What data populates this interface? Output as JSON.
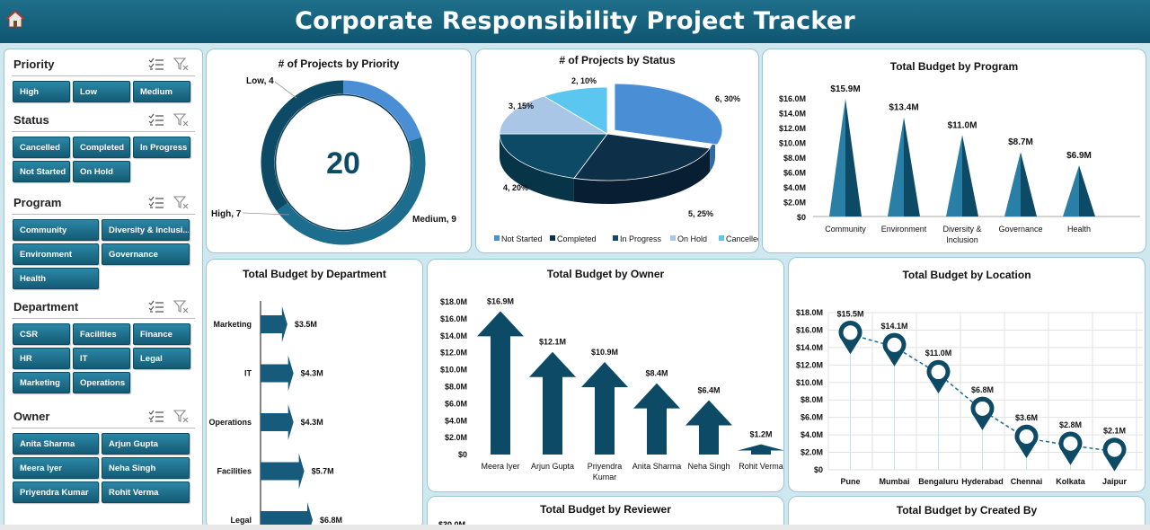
{
  "header": {
    "title": "Corporate Responsibility Project Tracker"
  },
  "slicers": [
    {
      "title": "Priority",
      "items": [
        "High",
        "Low",
        "Medium"
      ]
    },
    {
      "title": "Status",
      "items": [
        "Cancelled",
        "Completed",
        "In Progress",
        "Not Started",
        "On Hold"
      ]
    },
    {
      "title": "Program",
      "items": [
        "Community",
        "Diversity & Inclusi...",
        "Environment",
        "Governance",
        "Health"
      ]
    },
    {
      "title": "Department",
      "items": [
        "CSR",
        "Facilities",
        "Finance",
        "HR",
        "IT",
        "Legal",
        "Marketing",
        "Operations"
      ]
    },
    {
      "title": "Owner",
      "items": [
        "Anita Sharma",
        "Arjun Gupta",
        "Meera Iyer",
        "Neha Singh",
        "Priyendra Kumar",
        "Rohit Verma"
      ]
    }
  ],
  "colors": {
    "dark": "#0d4a66",
    "mid": "#1d6d8f",
    "accent": "#4a8fd6",
    "light": "#a9c6e6",
    "sky": "#5bc6f0"
  },
  "charts": {
    "priority": {
      "title": "# of Projects by Priority",
      "total": "20",
      "labels": [
        "Low, 4",
        "Medium, 9",
        "High, 7"
      ]
    },
    "status": {
      "title": "# of Projects by Status",
      "labels": [
        "6, 30%",
        "5, 25%",
        "4, 20%",
        "3, 15%",
        "2, 10%"
      ],
      "legend": [
        "Not Started",
        "Completed",
        "In Progress",
        "On Hold",
        "Cancelled"
      ]
    },
    "program": {
      "title": "Total Budget by Program",
      "ticks": [
        "$16.0M",
        "$14.0M",
        "$12.0M",
        "$10.0M",
        "$8.0M",
        "$6.0M",
        "$4.0M",
        "$2.0M",
        "$0"
      ],
      "categories": [
        "Community",
        "Environment",
        "Diversity &",
        "Governance",
        "Health"
      ],
      "categories2": [
        "",
        "",
        "Inclusion",
        "",
        ""
      ],
      "labels": [
        "$15.9M",
        "$13.4M",
        "$11.0M",
        "$8.7M",
        "$6.9M"
      ]
    },
    "department": {
      "title": "Total Budget by Department",
      "categories": [
        "Marketing",
        "IT",
        "Operations",
        "Facilities",
        "Legal"
      ],
      "labels": [
        "$3.5M",
        "$4.3M",
        "$4.3M",
        "$5.7M",
        "$6.8M"
      ]
    },
    "owner": {
      "title": "Total Budget by Owner",
      "ticks": [
        "$18.0M",
        "$16.0M",
        "$14.0M",
        "$12.0M",
        "$10.0M",
        "$8.0M",
        "$6.0M",
        "$4.0M",
        "$2.0M",
        "$0"
      ],
      "categories": [
        "Meera Iyer",
        "Arjun Gupta",
        "Priyendra",
        "Anita Sharma",
        "Neha Singh",
        "Rohit Verma"
      ],
      "categories2": [
        "",
        "",
        "Kumar",
        "",
        "",
        ""
      ],
      "labels": [
        "$16.9M",
        "$12.1M",
        "$10.9M",
        "$8.4M",
        "$6.4M",
        "$1.2M"
      ]
    },
    "location": {
      "title": "Total Budget by Location",
      "ticks": [
        "$18.0M",
        "$16.0M",
        "$14.0M",
        "$12.0M",
        "$10.0M",
        "$8.0M",
        "$6.0M",
        "$4.0M",
        "$2.0M",
        "$0"
      ],
      "categories": [
        "Pune",
        "Mumbai",
        "Bengaluru",
        "Hyderabad",
        "Chennai",
        "Kolkata",
        "Jaipur"
      ],
      "labels": [
        "$15.5M",
        "$14.1M",
        "$11.0M",
        "$6.8M",
        "$3.6M",
        "$2.8M",
        "$2.1M"
      ]
    },
    "reviewer": {
      "title": "Total Budget by Reviewer",
      "first_tick": "$30.0M"
    },
    "created_by": {
      "title": "Total Budget by Created By"
    }
  },
  "chart_data": [
    {
      "type": "pie",
      "title": "# of Projects by Priority",
      "categories": [
        "Low",
        "Medium",
        "High"
      ],
      "values": [
        4,
        9,
        7
      ],
      "total": 20
    },
    {
      "type": "pie",
      "title": "# of Projects by Status",
      "categories": [
        "Not Started",
        "Completed",
        "In Progress",
        "On Hold",
        "Cancelled"
      ],
      "values": [
        6,
        5,
        4,
        3,
        2
      ],
      "percent": [
        30,
        25,
        20,
        15,
        10
      ],
      "legend": "bottom"
    },
    {
      "type": "bar",
      "title": "Total Budget by Program",
      "categories": [
        "Community",
        "Environment",
        "Diversity & Inclusion",
        "Governance",
        "Health"
      ],
      "values": [
        15.9,
        13.4,
        11.0,
        8.7,
        6.9
      ],
      "ylim": [
        0,
        16
      ],
      "unit": "$M",
      "grid": false
    },
    {
      "type": "bar",
      "title": "Total Budget by Department",
      "orientation": "horizontal",
      "categories": [
        "Marketing",
        "IT",
        "Operations",
        "Facilities",
        "Legal"
      ],
      "values": [
        3.5,
        4.3,
        4.3,
        5.7,
        6.8
      ],
      "unit": "$M"
    },
    {
      "type": "bar",
      "title": "Total Budget by Owner",
      "categories": [
        "Meera Iyer",
        "Arjun Gupta",
        "Priyendra Kumar",
        "Anita Sharma",
        "Neha Singh",
        "Rohit Verma"
      ],
      "values": [
        16.9,
        12.1,
        10.9,
        8.4,
        6.4,
        1.2
      ],
      "ylim": [
        0,
        18
      ],
      "unit": "$M",
      "grid": false
    },
    {
      "type": "line",
      "title": "Total Budget by Location",
      "categories": [
        "Pune",
        "Mumbai",
        "Bengaluru",
        "Hyderabad",
        "Chennai",
        "Kolkata",
        "Jaipur"
      ],
      "values": [
        15.5,
        14.1,
        11.0,
        6.8,
        3.6,
        2.8,
        2.1
      ],
      "ylim": [
        0,
        18
      ],
      "unit": "$M",
      "grid": true
    }
  ]
}
